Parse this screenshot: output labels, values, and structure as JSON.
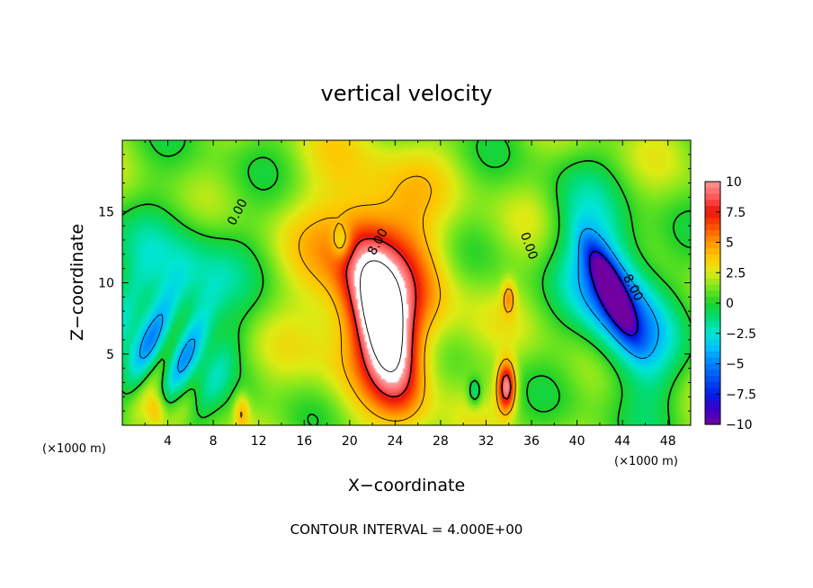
{
  "chart_data": {
    "type": "heatmap",
    "title": "vertical velocity",
    "xlabel": "X−coordinate",
    "ylabel": "Z−coordinate",
    "x_unit_label": "(×1000 m)",
    "x_unit_label_right": "(×1000 m)",
    "footer": "CONTOUR INTERVAL = 4.000E+00",
    "xlim": [
      0,
      50
    ],
    "ylim": [
      0,
      20
    ],
    "x_ticks": [
      "4",
      "8",
      "12",
      "16",
      "20",
      "24",
      "28",
      "32",
      "36",
      "40",
      "44",
      "48"
    ],
    "y_ticks": [
      "5",
      "10",
      "15"
    ],
    "colorbar": {
      "range": [
        -10,
        10
      ],
      "ticks": [
        "10",
        "7.5",
        "5",
        "2.5",
        "0",
        "−2.5",
        "−5",
        "−7.5",
        "−10"
      ],
      "colormap": "rainbow-with-white-top"
    },
    "contour_labels": [
      "0.00",
      "8.00",
      "0.00",
      "8.00"
    ],
    "features": [
      {
        "kind": "updraft",
        "x": 23,
        "z": 7,
        "peak": 14
      },
      {
        "kind": "updraft",
        "x": 33.8,
        "z": 2.7,
        "peak": 9
      },
      {
        "kind": "downdraft",
        "x": 43,
        "z": 9.5,
        "peak": -13
      },
      {
        "kind": "downdraft",
        "x": 4,
        "z": 8,
        "peak": -6
      }
    ]
  }
}
